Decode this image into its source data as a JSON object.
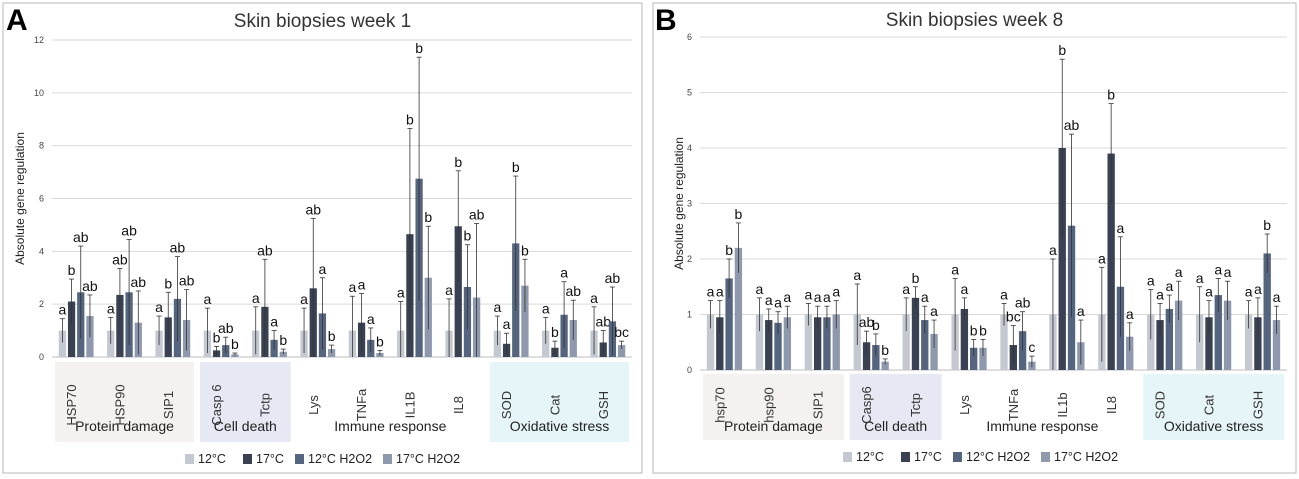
{
  "chart_data": [
    {
      "type": "bar",
      "panel_label": "A",
      "title": "Skin biopsies week 1",
      "ylabel": "Absolute gene regulation",
      "ylim": [
        0,
        12
      ],
      "yticks": [
        "0",
        "2",
        "4",
        "6",
        "8",
        "10",
        "12"
      ],
      "categories": [
        "HSP70",
        "HSP90",
        "SIP1",
        "Casp 6",
        "Tctp",
        "Lys",
        "TNFa",
        "IL1B",
        "IL8",
        "SOD",
        "Cat",
        "GSH"
      ],
      "series_names": [
        "12°C",
        "17°C",
        "12°C H2O2",
        "17°C H2O2"
      ],
      "values": [
        [
          1.0,
          2.1,
          2.45,
          1.55
        ],
        [
          1.0,
          2.35,
          2.45,
          1.3
        ],
        [
          1.0,
          1.5,
          2.2,
          1.4
        ],
        [
          1.0,
          0.25,
          0.45,
          0.1
        ],
        [
          1.0,
          1.9,
          0.65,
          0.2
        ],
        [
          1.0,
          2.6,
          1.65,
          0.3
        ],
        [
          1.0,
          1.3,
          0.65,
          0.15
        ],
        [
          1.0,
          4.65,
          6.75,
          3.0
        ],
        [
          1.0,
          4.95,
          2.65,
          2.25
        ],
        [
          1.0,
          0.5,
          4.3,
          2.7
        ],
        [
          1.0,
          0.35,
          1.6,
          1.4
        ],
        [
          1.0,
          0.55,
          1.35,
          0.45
        ]
      ],
      "errors": [
        [
          0.45,
          0.85,
          1.75,
          0.8
        ],
        [
          0.5,
          1.0,
          2.0,
          1.2
        ],
        [
          0.55,
          0.95,
          1.6,
          1.15
        ],
        [
          0.85,
          0.15,
          0.3,
          0.05
        ],
        [
          0.9,
          1.8,
          0.35,
          0.1
        ],
        [
          0.85,
          2.65,
          1.35,
          0.15
        ],
        [
          1.3,
          1.1,
          0.45,
          0.1
        ],
        [
          1.1,
          4.0,
          4.6,
          1.95
        ],
        [
          1.2,
          2.1,
          1.6,
          2.8
        ],
        [
          0.55,
          0.4,
          2.55,
          1.0
        ],
        [
          0.5,
          0.25,
          1.25,
          0.75
        ],
        [
          0.9,
          0.45,
          1.3,
          0.15
        ]
      ],
      "letters": [
        [
          "a",
          "b",
          "ab",
          "ab"
        ],
        [
          "a",
          "ab",
          "ab",
          "ab"
        ],
        [
          "a",
          "b",
          "ab",
          "ab"
        ],
        [
          "a",
          "b",
          "ab",
          "b"
        ],
        [
          "a",
          "ab",
          "a",
          "b"
        ],
        [
          "a",
          "ab",
          "a",
          "b"
        ],
        [
          "a",
          "a",
          "a",
          "b"
        ],
        [
          "a",
          "b",
          "b",
          "b"
        ],
        [
          "a",
          "b",
          "b",
          "ab"
        ],
        [
          "a",
          "a",
          "b",
          "b"
        ],
        [
          "a",
          "b",
          "a",
          "ab"
        ],
        [
          "a",
          "ab",
          "ab",
          "bc"
        ]
      ],
      "groups": [
        {
          "label": "Protein damage",
          "span": [
            0,
            2
          ],
          "shade": "#f6f1f1"
        },
        {
          "label": "Cell death",
          "span": [
            3,
            4
          ],
          "shade": "#e6e9f3"
        },
        {
          "label": "Immune response",
          "span": [
            5,
            8
          ],
          "shade": ""
        },
        {
          "label": "Oxidative stress",
          "span": [
            9,
            11
          ],
          "shade": "#e6f5f8"
        }
      ],
      "legend_items": [
        "12°C",
        "17°C",
        "12°C H2O2",
        "17°C H2O2"
      ]
    },
    {
      "type": "bar",
      "panel_label": "B",
      "title": "Skin biopsies week 8",
      "ylabel": "Absolute gene regulation",
      "ylim": [
        0,
        6
      ],
      "yticks": [
        "0",
        "1",
        "2",
        "3",
        "4",
        "5",
        "6"
      ],
      "categories": [
        "hsp70",
        "hsp90",
        "SIP1",
        "Casp6",
        "Tctp",
        "Lys",
        "TNFa",
        "IL1b",
        "IL8",
        "SOD",
        "Cat",
        "GSH"
      ],
      "series_names": [
        "12°C",
        "17°C",
        "12°C H2O2",
        "17°C H2O2"
      ],
      "values": [
        [
          1.0,
          0.95,
          1.65,
          2.2
        ],
        [
          1.0,
          0.9,
          0.85,
          0.95
        ],
        [
          1.0,
          0.95,
          0.95,
          1.0
        ],
        [
          1.0,
          0.5,
          0.45,
          0.15
        ],
        [
          1.0,
          1.3,
          0.9,
          0.65
        ],
        [
          1.0,
          1.1,
          0.4,
          0.4
        ],
        [
          1.0,
          0.45,
          0.7,
          0.15
        ],
        [
          1.0,
          4.0,
          2.6,
          0.5
        ],
        [
          1.0,
          3.9,
          1.5,
          0.6
        ],
        [
          1.0,
          0.9,
          1.1,
          1.25
        ],
        [
          1.0,
          0.95,
          1.35,
          1.25
        ],
        [
          1.0,
          0.95,
          2.1,
          0.9
        ]
      ],
      "errors": [
        [
          0.25,
          0.3,
          0.35,
          0.45
        ],
        [
          0.3,
          0.2,
          0.2,
          0.2
        ],
        [
          0.2,
          0.2,
          0.2,
          0.25
        ],
        [
          0.55,
          0.2,
          0.2,
          0.05
        ],
        [
          0.3,
          0.2,
          0.25,
          0.25
        ],
        [
          0.65,
          0.2,
          0.15,
          0.15
        ],
        [
          0.2,
          0.35,
          0.35,
          0.1
        ],
        [
          1.0,
          1.6,
          1.65,
          0.4
        ],
        [
          0.85,
          0.9,
          0.9,
          0.25
        ],
        [
          0.45,
          0.3,
          0.25,
          0.35
        ],
        [
          0.5,
          0.3,
          0.3,
          0.35
        ],
        [
          0.25,
          0.35,
          0.35,
          0.25
        ]
      ],
      "letters": [
        [
          "a",
          "a",
          "b",
          "b"
        ],
        [
          "a",
          "a",
          "a",
          "a"
        ],
        [
          "a",
          "a",
          "a",
          "a"
        ],
        [
          "a",
          "ab",
          "b",
          "b"
        ],
        [
          "a",
          "b",
          "a",
          "a"
        ],
        [
          "a",
          "a",
          "b",
          "b"
        ],
        [
          "a",
          "bc",
          "ab",
          "c"
        ],
        [
          "a",
          "b",
          "ab",
          "a"
        ],
        [
          "a",
          "b",
          "a",
          "a"
        ],
        [
          "a",
          "a",
          "a",
          "a"
        ],
        [
          "a",
          "a",
          "a",
          "a"
        ],
        [
          "a",
          "a",
          "b",
          "a"
        ]
      ],
      "groups": [
        {
          "label": "Protein damage",
          "span": [
            0,
            2
          ],
          "shade": "#f6f1f1"
        },
        {
          "label": "Cell death",
          "span": [
            3,
            4
          ],
          "shade": "#e6e9f3"
        },
        {
          "label": "Immune response",
          "span": [
            5,
            8
          ],
          "shade": ""
        },
        {
          "label": "Oxidative stress",
          "span": [
            9,
            11
          ],
          "shade": "#e6f5f8"
        }
      ],
      "legend_items": [
        "12°C",
        "17°C",
        "12°C H2O2",
        "17°C H2O2"
      ]
    }
  ],
  "series_colors": [
    "#c4c8d1",
    "#3a4153",
    "#55647f",
    "#8f99ad"
  ]
}
